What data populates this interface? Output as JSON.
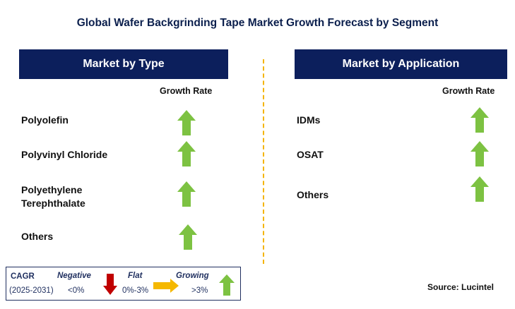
{
  "title": "Global Wafer Backgrinding Tape Market Growth Forecast by Segment",
  "type_panel": {
    "header": "Market by Type",
    "growth_label": "Growth Rate",
    "rows": [
      {
        "label": "Polyolefin",
        "trend": "growing"
      },
      {
        "label": "Polyvinyl Chloride",
        "trend": "growing"
      },
      {
        "label_line1": "Polyethylene",
        "label_line2": "Terephthalate",
        "trend": "growing"
      },
      {
        "label": "Others",
        "trend": "growing"
      }
    ]
  },
  "application_panel": {
    "header": "Market by Application",
    "growth_label": "Growth Rate",
    "rows": [
      {
        "label": "IDMs",
        "trend": "growing"
      },
      {
        "label": "OSAT",
        "trend": "growing"
      },
      {
        "label": "Others",
        "trend": "growing"
      }
    ]
  },
  "legend": {
    "cagr_label": "CAGR",
    "period": "(2025-2031)",
    "negative": {
      "label": "Negative",
      "range": "<0%",
      "icon": "red-down-arrow-icon",
      "color": "#c00000"
    },
    "flat": {
      "label": "Flat",
      "range": "0%-3%",
      "icon": "orange-right-arrow-icon",
      "color": "#f5b800"
    },
    "growing": {
      "label": "Growing",
      "range": ">3%",
      "icon": "green-up-arrow-icon",
      "color": "#7dc242"
    }
  },
  "source": "Source: Lucintel",
  "colors": {
    "header_bg": "#0c1f5c",
    "title_text": "#0b1f4d",
    "divider": "#f4b400",
    "up_arrow": "#7dc242"
  }
}
